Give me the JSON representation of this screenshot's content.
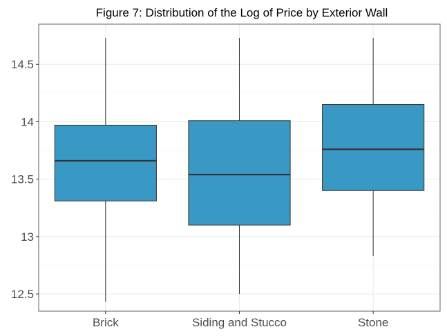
{
  "chart_data": {
    "type": "box",
    "title": "Figure 7: Distribution of the Log of Price by Exterior Wall",
    "xlabel": "",
    "ylabel": "",
    "categories": [
      "Brick",
      "Siding and Stucco",
      "Stone"
    ],
    "boxes": [
      {
        "category": "Brick",
        "min": 12.43,
        "q1": 13.31,
        "median": 13.66,
        "q3": 13.97,
        "max": 14.73
      },
      {
        "category": "Siding and Stucco",
        "min": 12.5,
        "q1": 13.1,
        "median": 13.54,
        "q3": 14.01,
        "max": 14.73
      },
      {
        "category": "Stone",
        "min": 12.83,
        "q1": 13.4,
        "median": 13.76,
        "q3": 14.15,
        "max": 14.73
      }
    ],
    "y_ticks": [
      12.5,
      13,
      13.5,
      14,
      14.5
    ],
    "y_tick_labels": [
      "12.5",
      "13",
      "13.5",
      "14",
      "14.5"
    ],
    "ylim": [
      12.35,
      14.85
    ],
    "grid": true,
    "legend": "none",
    "box_fill": "#3a98c4",
    "outline_color": "#333333",
    "gridline_color": "#ebebeb",
    "panel_border_color": "#6e6e6e"
  }
}
